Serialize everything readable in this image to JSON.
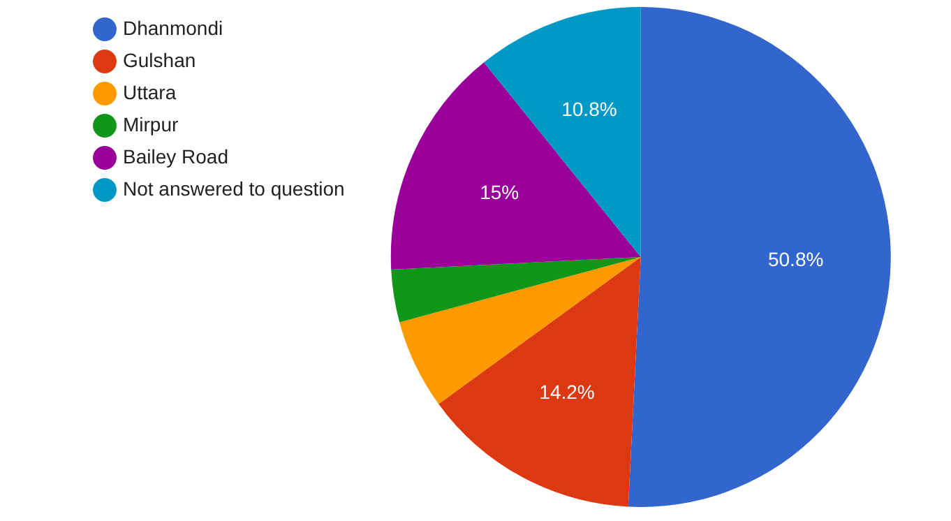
{
  "chart_data": {
    "type": "pie",
    "categories": [
      "Dhanmondi",
      "Gulshan",
      "Uttara",
      "Mirpur",
      "Bailey Road",
      "Not answered to question"
    ],
    "values": [
      50.8,
      14.2,
      5.8,
      3.4,
      15,
      10.8
    ],
    "colors": [
      "#3366cc",
      "#dc3912",
      "#ff9900",
      "#109618",
      "#990099",
      "#0099c6"
    ],
    "value_labels": [
      "50.8%",
      "14.2%",
      null,
      null,
      "15%",
      "10.8%"
    ],
    "legend": "left"
  }
}
